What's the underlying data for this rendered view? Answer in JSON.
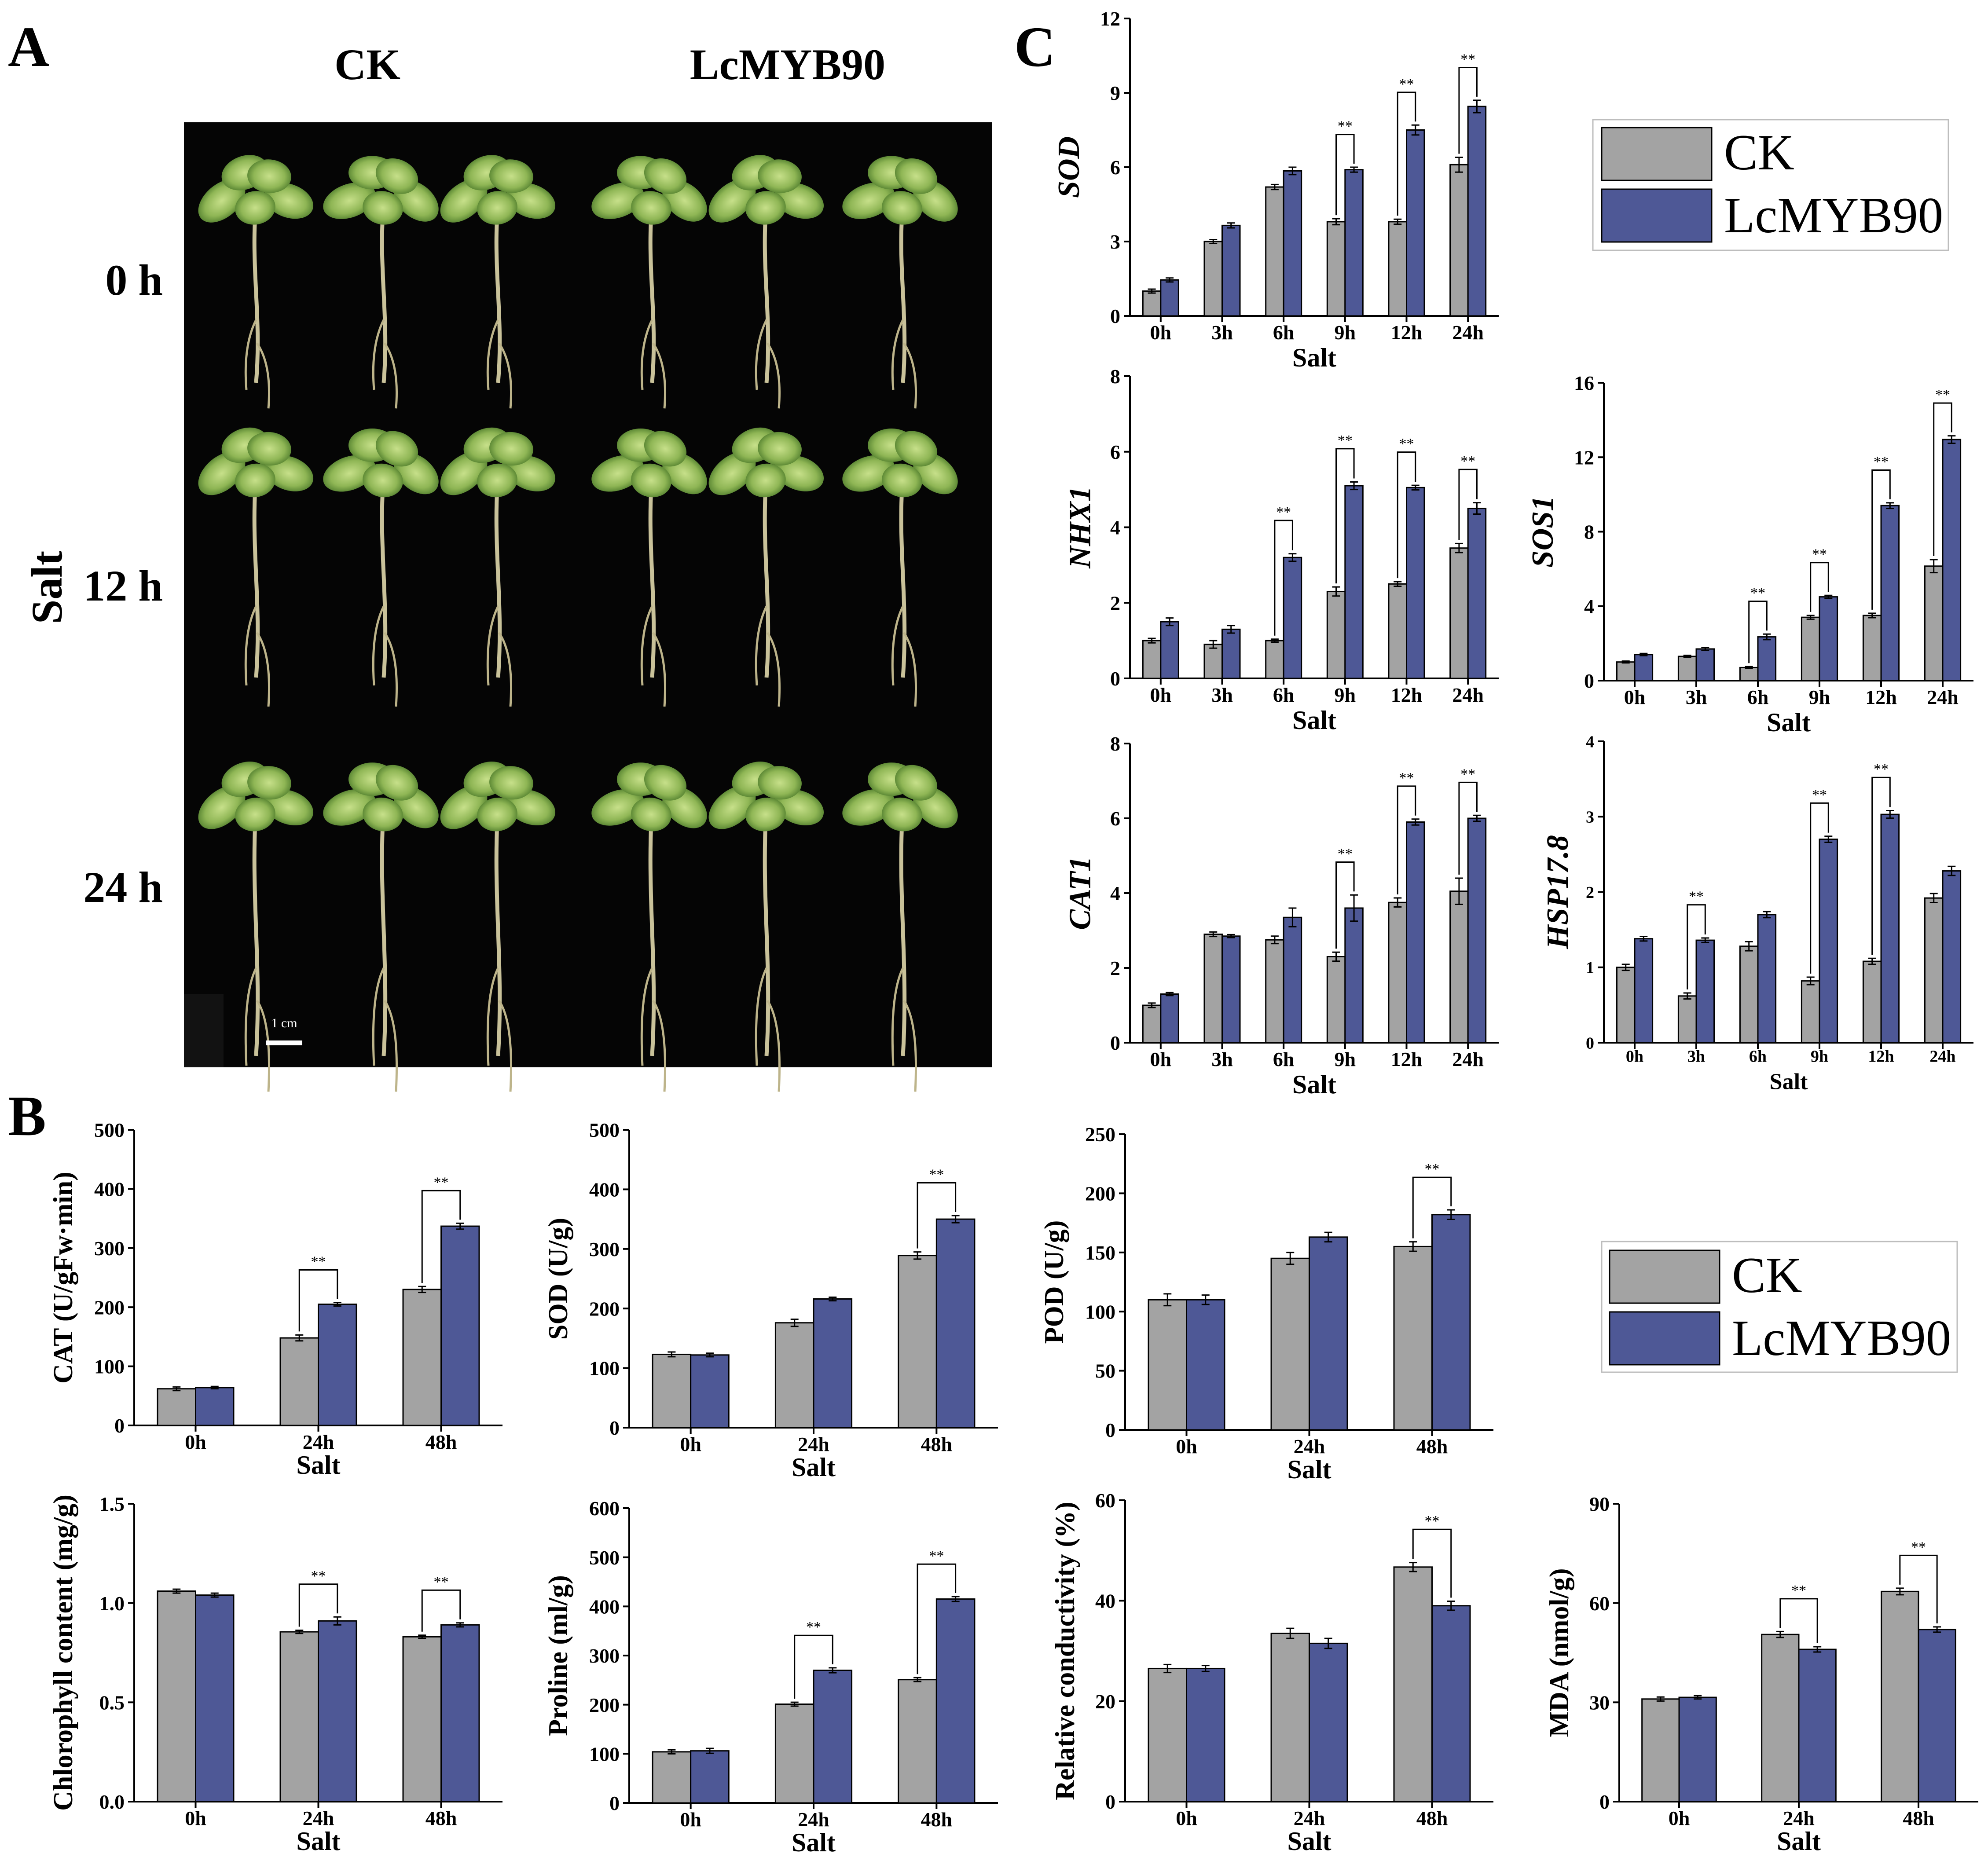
{
  "panel_labels": {
    "a": "A",
    "b": "B",
    "c": "C"
  },
  "photo": {
    "col_headers": [
      "CK",
      "LcMYB90"
    ],
    "row_labels": [
      "0 h",
      "12 h",
      "24 h"
    ],
    "side_label": "Salt",
    "scale_bar": "1 cm"
  },
  "colors": {
    "ck": "#a3a3a3",
    "lcmyb90": "#4e5896",
    "frame": "#000000"
  },
  "legend": {
    "ck": "CK",
    "lcmyb90": "LcMYB90"
  },
  "sig_mark": "**",
  "chart_data": [
    {
      "id": "c-sod",
      "type": "bar",
      "title": "",
      "ylabel": "SOD",
      "ylabel_italic": true,
      "xlabel": "Salt",
      "categories": [
        "0h",
        "3h",
        "6h",
        "9h",
        "12h",
        "24h"
      ],
      "ylim": [
        0,
        12
      ],
      "yticks": [
        0,
        3,
        6,
        9,
        12
      ],
      "ytick_labels": [
        "0",
        "3",
        "6",
        "9",
        "12"
      ],
      "series": [
        {
          "name": "CK",
          "values": [
            1.0,
            3.0,
            5.2,
            3.8,
            3.8,
            6.1
          ],
          "err": [
            0.08,
            0.08,
            0.1,
            0.12,
            0.1,
            0.3
          ]
        },
        {
          "name": "LcMYB90",
          "values": [
            1.45,
            3.65,
            5.85,
            5.9,
            7.5,
            8.45
          ],
          "err": [
            0.08,
            0.1,
            0.15,
            0.1,
            0.2,
            0.25
          ]
        }
      ],
      "significance": [
        3,
        4,
        5
      ]
    },
    {
      "id": "c-nhx1",
      "type": "bar",
      "title": "",
      "ylabel": "NHX1",
      "ylabel_italic": true,
      "xlabel": "Salt",
      "categories": [
        "0h",
        "3h",
        "6h",
        "9h",
        "12h",
        "24h"
      ],
      "ylim": [
        0,
        8
      ],
      "yticks": [
        0,
        2,
        4,
        6,
        8
      ],
      "ytick_labels": [
        "0",
        "2",
        "4",
        "6",
        "8"
      ],
      "series": [
        {
          "name": "CK",
          "values": [
            1.0,
            0.9,
            1.0,
            2.3,
            2.5,
            3.45
          ],
          "err": [
            0.06,
            0.1,
            0.04,
            0.12,
            0.06,
            0.12
          ]
        },
        {
          "name": "LcMYB90",
          "values": [
            1.5,
            1.3,
            3.2,
            5.1,
            5.05,
            4.5
          ],
          "err": [
            0.1,
            0.1,
            0.1,
            0.1,
            0.06,
            0.15
          ]
        }
      ],
      "significance": [
        2,
        3,
        4,
        5
      ]
    },
    {
      "id": "c-sos1",
      "type": "bar",
      "title": "",
      "ylabel": "SOS1",
      "ylabel_italic": true,
      "xlabel": "Salt",
      "categories": [
        "0h",
        "3h",
        "6h",
        "9h",
        "12h",
        "24h"
      ],
      "ylim": [
        0,
        16
      ],
      "yticks": [
        0,
        4,
        8,
        12,
        16
      ],
      "ytick_labels": [
        "0",
        "4",
        "8",
        "12",
        "16"
      ],
      "series": [
        {
          "name": "CK",
          "values": [
            1.0,
            1.3,
            0.7,
            3.4,
            3.5,
            6.15
          ],
          "err": [
            0.05,
            0.06,
            0.05,
            0.1,
            0.12,
            0.35
          ]
        },
        {
          "name": "LcMYB90",
          "values": [
            1.4,
            1.7,
            2.35,
            4.5,
            9.4,
            12.95
          ],
          "err": [
            0.06,
            0.08,
            0.15,
            0.08,
            0.15,
            0.2
          ]
        }
      ],
      "significance": [
        2,
        3,
        4,
        5
      ]
    },
    {
      "id": "c-cat1",
      "type": "bar",
      "title": "",
      "ylabel": "CAT1",
      "ylabel_italic": true,
      "xlabel": "Salt",
      "categories": [
        "0h",
        "3h",
        "6h",
        "9h",
        "12h",
        "24h"
      ],
      "ylim": [
        0,
        8
      ],
      "yticks": [
        0,
        2,
        4,
        6,
        8
      ],
      "ytick_labels": [
        "0",
        "2",
        "4",
        "6",
        "8"
      ],
      "series": [
        {
          "name": "CK",
          "values": [
            1.0,
            2.9,
            2.75,
            2.3,
            3.75,
            4.05
          ],
          "err": [
            0.06,
            0.06,
            0.1,
            0.12,
            0.12,
            0.35
          ]
        },
        {
          "name": "LcMYB90",
          "values": [
            1.3,
            2.85,
            3.35,
            3.6,
            5.9,
            6.0
          ],
          "err": [
            0.04,
            0.04,
            0.25,
            0.35,
            0.08,
            0.08
          ]
        }
      ],
      "significance": [
        3,
        4,
        5
      ]
    },
    {
      "id": "c-hsp",
      "type": "bar",
      "title": "",
      "ylabel": "HSP17.8",
      "ylabel_italic": true,
      "xlabel": "Salt",
      "categories": [
        "0h",
        "3h",
        "6h",
        "9h",
        "12h",
        "24h"
      ],
      "ylim": [
        0,
        4
      ],
      "yticks": [
        0,
        1,
        2,
        3,
        4
      ],
      "ytick_labels": [
        "0",
        "1",
        "2",
        "3",
        "4"
      ],
      "series": [
        {
          "name": "CK",
          "values": [
            1.0,
            0.62,
            1.28,
            0.82,
            1.08,
            1.92
          ],
          "err": [
            0.04,
            0.04,
            0.06,
            0.05,
            0.04,
            0.06
          ]
        },
        {
          "name": "LcMYB90",
          "values": [
            1.38,
            1.36,
            1.7,
            2.7,
            3.03,
            2.28
          ],
          "err": [
            0.03,
            0.03,
            0.04,
            0.04,
            0.05,
            0.06
          ]
        }
      ],
      "significance": [
        1,
        3,
        4
      ]
    },
    {
      "id": "b-cat",
      "type": "bar",
      "title": "",
      "ylabel": "CAT (U/gFw·min)",
      "ylabel_italic": false,
      "xlabel": "Salt",
      "categories": [
        "0h",
        "24h",
        "48h"
      ],
      "ylim": [
        0,
        500
      ],
      "yticks": [
        0,
        100,
        200,
        300,
        400,
        500
      ],
      "ytick_labels": [
        "0",
        "100",
        "200",
        "300",
        "400",
        "500"
      ],
      "series": [
        {
          "name": "CK",
          "values": [
            62,
            148,
            230
          ],
          "err": [
            3,
            5,
            5
          ]
        },
        {
          "name": "LcMYB90",
          "values": [
            64,
            205,
            337
          ],
          "err": [
            2,
            3,
            5
          ]
        }
      ],
      "significance": [
        1,
        2
      ]
    },
    {
      "id": "b-sod",
      "type": "bar",
      "title": "",
      "ylabel": "SOD (U/g)",
      "ylabel_italic": false,
      "xlabel": "Salt",
      "categories": [
        "0h",
        "24h",
        "48h"
      ],
      "ylim": [
        0,
        500
      ],
      "yticks": [
        0,
        100,
        200,
        300,
        400,
        500
      ],
      "ytick_labels": [
        "0",
        "100",
        "200",
        "300",
        "400",
        "500"
      ],
      "series": [
        {
          "name": "CK",
          "values": [
            123,
            176,
            289
          ],
          "err": [
            4,
            6,
            6
          ]
        },
        {
          "name": "LcMYB90",
          "values": [
            122,
            216,
            350
          ],
          "err": [
            3,
            3,
            6
          ]
        }
      ],
      "significance": [
        2
      ]
    },
    {
      "id": "b-pod",
      "type": "bar",
      "title": "",
      "ylabel": "POD (U/g)",
      "ylabel_italic": false,
      "xlabel": "Salt",
      "categories": [
        "0h",
        "24h",
        "48h"
      ],
      "ylim": [
        0,
        250
      ],
      "yticks": [
        0,
        50,
        100,
        150,
        200,
        250
      ],
      "ytick_labels": [
        "0",
        "50",
        "100",
        "150",
        "200",
        "250"
      ],
      "series": [
        {
          "name": "CK",
          "values": [
            110,
            145,
            155
          ],
          "err": [
            5,
            5,
            4
          ]
        },
        {
          "name": "LcMYB90",
          "values": [
            110,
            163,
            182
          ],
          "err": [
            4,
            4,
            4
          ]
        }
      ],
      "significance": [
        2
      ]
    },
    {
      "id": "b-chl",
      "type": "bar",
      "title": "",
      "ylabel": "Chlorophyll content (mg/g)",
      "ylabel_italic": false,
      "xlabel": "Salt",
      "categories": [
        "0h",
        "24h",
        "48h"
      ],
      "ylim": [
        0,
        1.5
      ],
      "yticks": [
        0,
        0.5,
        1.0,
        1.5
      ],
      "ytick_labels": [
        "0.0",
        "0.5",
        "1.0",
        "1.5"
      ],
      "series": [
        {
          "name": "CK",
          "values": [
            1.06,
            0.855,
            0.83
          ],
          "err": [
            0.01,
            0.008,
            0.008
          ]
        },
        {
          "name": "LcMYB90",
          "values": [
            1.04,
            0.91,
            0.89
          ],
          "err": [
            0.01,
            0.02,
            0.01
          ]
        }
      ],
      "significance": [
        1,
        2
      ]
    },
    {
      "id": "b-pro",
      "type": "bar",
      "title": "",
      "ylabel": "Proline (ml/g)",
      "ylabel_italic": false,
      "xlabel": "Salt",
      "categories": [
        "0h",
        "24h",
        "48h"
      ],
      "ylim": [
        0,
        600
      ],
      "yticks": [
        0,
        100,
        200,
        300,
        400,
        500,
        600
      ],
      "ytick_labels": [
        "0",
        "100",
        "200",
        "300",
        "400",
        "500",
        "600"
      ],
      "series": [
        {
          "name": "CK",
          "values": [
            104,
            201,
            251
          ],
          "err": [
            4,
            4,
            4
          ]
        },
        {
          "name": "LcMYB90",
          "values": [
            106,
            270,
            415
          ],
          "err": [
            5,
            5,
            5
          ]
        }
      ],
      "significance": [
        1,
        2
      ]
    },
    {
      "id": "b-rc",
      "type": "bar",
      "title": "",
      "ylabel": "Relative conductivity (%)",
      "ylabel_italic": false,
      "xlabel": "Salt",
      "categories": [
        "0h",
        "24h",
        "48h"
      ],
      "ylim": [
        0,
        60
      ],
      "yticks": [
        0,
        20,
        40,
        60
      ],
      "ytick_labels": [
        "0",
        "20",
        "40",
        "60"
      ],
      "series": [
        {
          "name": "CK",
          "values": [
            26.5,
            33.5,
            46.7
          ],
          "err": [
            0.8,
            1.0,
            0.9
          ]
        },
        {
          "name": "LcMYB90",
          "values": [
            26.5,
            31.5,
            39.0
          ],
          "err": [
            0.6,
            1.0,
            0.9
          ]
        }
      ],
      "significance": [
        2
      ]
    },
    {
      "id": "b-mda",
      "type": "bar",
      "title": "",
      "ylabel": "MDA (nmol/g)",
      "ylabel_italic": false,
      "xlabel": "Salt",
      "categories": [
        "0h",
        "24h",
        "48h"
      ],
      "ylim": [
        0,
        90
      ],
      "yticks": [
        0,
        30,
        60,
        90
      ],
      "ytick_labels": [
        "0",
        "30",
        "60",
        "90"
      ],
      "series": [
        {
          "name": "CK",
          "values": [
            31.0,
            50.5,
            63.5
          ],
          "err": [
            0.6,
            0.9,
            1.0
          ]
        },
        {
          "name": "LcMYB90",
          "values": [
            31.5,
            46.0,
            52.0
          ],
          "err": [
            0.5,
            0.8,
            0.8
          ]
        }
      ],
      "significance": [
        1,
        2
      ]
    }
  ]
}
